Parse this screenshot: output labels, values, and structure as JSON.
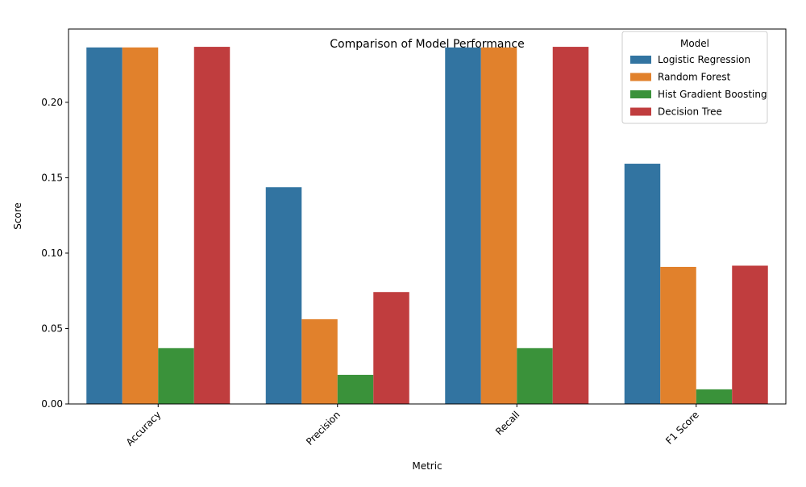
{
  "chart_data": {
    "type": "bar",
    "title": "Comparison of Model Performance",
    "xlabel": "Metric",
    "ylabel": "Score",
    "categories": [
      "Accuracy",
      "Precision",
      "Recall",
      "F1 Score"
    ],
    "series": [
      {
        "name": "Logistic Regression",
        "color": "#3274a1",
        "values": [
          0.2364,
          0.1437,
          0.2364,
          0.1593
        ]
      },
      {
        "name": "Random Forest",
        "color": "#e1812c",
        "values": [
          0.2364,
          0.0562,
          0.2364,
          0.0909
        ]
      },
      {
        "name": "Hist Gradient Boosting",
        "color": "#3a923a",
        "values": [
          0.037,
          0.0193,
          0.037,
          0.0097
        ]
      },
      {
        "name": "Decision Tree",
        "color": "#c03d3e",
        "values": [
          0.2368,
          0.0742,
          0.2368,
          0.0917
        ]
      }
    ],
    "ylim": [
      0,
      0.2486
    ],
    "yticks": [
      "0.00",
      "0.05",
      "0.10",
      "0.15",
      "0.20"
    ],
    "legend": {
      "title": "Model",
      "placement": "top-right"
    },
    "grid": false
  }
}
